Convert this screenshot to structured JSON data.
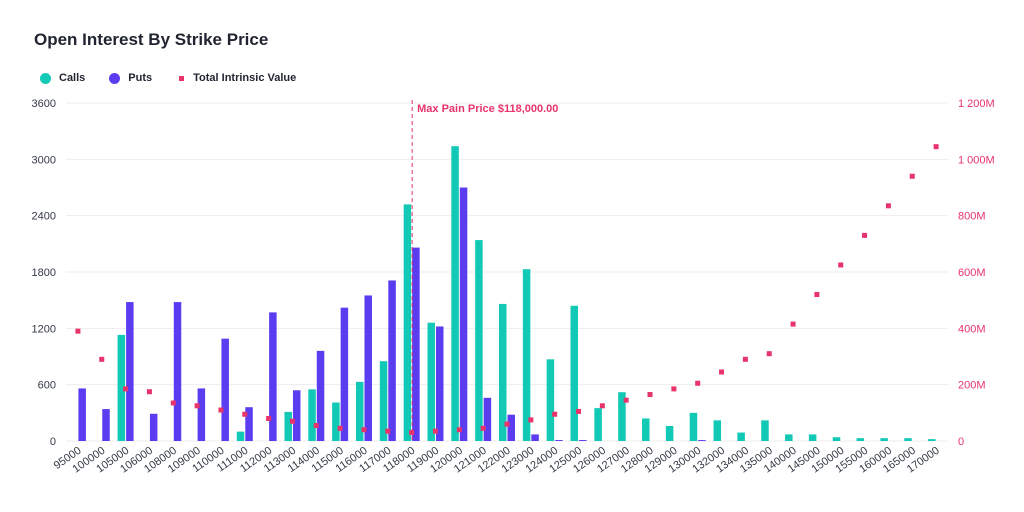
{
  "chart_data": {
    "type": "bar",
    "title": "Open Interest By Strike Price",
    "categories": [
      "95000",
      "100000",
      "105000",
      "106000",
      "108000",
      "109000",
      "110000",
      "111000",
      "112000",
      "113000",
      "114000",
      "115000",
      "116000",
      "117000",
      "118000",
      "119000",
      "120000",
      "121000",
      "122000",
      "123000",
      "124000",
      "125000",
      "126000",
      "127000",
      "128000",
      "129000",
      "130000",
      "132000",
      "134000",
      "135000",
      "140000",
      "145000",
      "150000",
      "155000",
      "160000",
      "165000",
      "170000"
    ],
    "series": [
      {
        "name": "Calls",
        "color": "#12c9b5",
        "axis": "left",
        "values": [
          0,
          0,
          1130,
          0,
          0,
          0,
          0,
          100,
          0,
          310,
          550,
          410,
          630,
          850,
          2520,
          1260,
          3140,
          2140,
          1460,
          1830,
          870,
          1440,
          350,
          520,
          240,
          160,
          300,
          220,
          90,
          220,
          70,
          70,
          40,
          30,
          30,
          30,
          20
        ]
      },
      {
        "name": "Puts",
        "color": "#5b3cf0",
        "axis": "left",
        "values": [
          560,
          340,
          1480,
          290,
          1480,
          560,
          1090,
          360,
          1370,
          540,
          960,
          1420,
          1550,
          1710,
          2060,
          1220,
          2700,
          460,
          280,
          70,
          10,
          10,
          0,
          0,
          0,
          0,
          10,
          0,
          0,
          0,
          0,
          0,
          0,
          0,
          0,
          0,
          0
        ]
      },
      {
        "name": "Total Intrinsic Value",
        "color": "#e8336b",
        "axis": "right",
        "type": "scatter",
        "values": [
          390,
          290,
          185,
          175,
          135,
          125,
          110,
          95,
          80,
          70,
          55,
          45,
          40,
          35,
          30,
          35,
          40,
          45,
          60,
          75,
          95,
          105,
          125,
          145,
          165,
          185,
          205,
          245,
          290,
          310,
          415,
          520,
          625,
          730,
          835,
          940,
          1045
        ]
      }
    ],
    "yleft": {
      "min": 0,
      "max": 3600,
      "ticks": [
        0,
        600,
        1200,
        1800,
        2400,
        3000,
        3600
      ]
    },
    "yright": {
      "min": 0,
      "max": 1200,
      "ticks": [
        0,
        200,
        400,
        600,
        800,
        1000,
        1200
      ],
      "tick_labels": [
        "0",
        "200M",
        "400M",
        "600M",
        "800M",
        "1 000M",
        "1 200M"
      ]
    },
    "annotation": {
      "label": "Max Pain Price $118,000.00",
      "category": "118000"
    },
    "grid": true,
    "legend_position": "top-left"
  },
  "colors": {
    "calls": "#12c9b5",
    "puts": "#5b3cf0",
    "intrinsic": "#e8336b",
    "axis_text": "#333a45",
    "grid": "#ededed"
  }
}
